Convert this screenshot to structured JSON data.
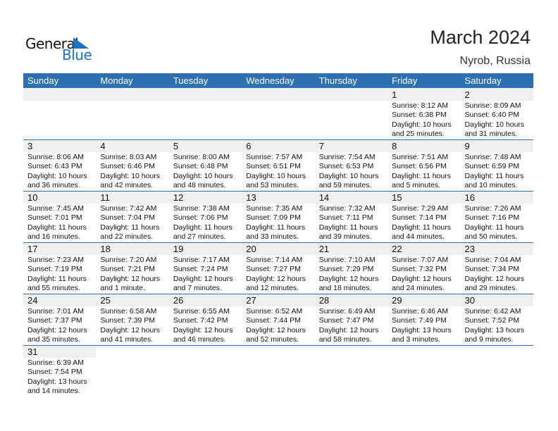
{
  "logo": {
    "line1": "General",
    "line2": "Blue"
  },
  "header": {
    "title": "March 2024",
    "location": "Nyrob, Russia"
  },
  "weekdays": [
    "Sunday",
    "Monday",
    "Tuesday",
    "Wednesday",
    "Thursday",
    "Friday",
    "Saturday"
  ],
  "colors": {
    "accent": "#2e6fb0",
    "band": "#f0f0f0"
  },
  "weeks": [
    [
      null,
      null,
      null,
      null,
      null,
      {
        "day": "1",
        "sunrise": "Sunrise: 8:12 AM",
        "sunset": "Sunset: 6:38 PM",
        "daylight1": "Daylight: 10 hours",
        "daylight2": "and 25 minutes."
      },
      {
        "day": "2",
        "sunrise": "Sunrise: 8:09 AM",
        "sunset": "Sunset: 6:40 PM",
        "daylight1": "Daylight: 10 hours",
        "daylight2": "and 31 minutes."
      }
    ],
    [
      {
        "day": "3",
        "sunrise": "Sunrise: 8:06 AM",
        "sunset": "Sunset: 6:43 PM",
        "daylight1": "Daylight: 10 hours",
        "daylight2": "and 36 minutes."
      },
      {
        "day": "4",
        "sunrise": "Sunrise: 8:03 AM",
        "sunset": "Sunset: 6:46 PM",
        "daylight1": "Daylight: 10 hours",
        "daylight2": "and 42 minutes."
      },
      {
        "day": "5",
        "sunrise": "Sunrise: 8:00 AM",
        "sunset": "Sunset: 6:48 PM",
        "daylight1": "Daylight: 10 hours",
        "daylight2": "and 48 minutes."
      },
      {
        "day": "6",
        "sunrise": "Sunrise: 7:57 AM",
        "sunset": "Sunset: 6:51 PM",
        "daylight1": "Daylight: 10 hours",
        "daylight2": "and 53 minutes."
      },
      {
        "day": "7",
        "sunrise": "Sunrise: 7:54 AM",
        "sunset": "Sunset: 6:53 PM",
        "daylight1": "Daylight: 10 hours",
        "daylight2": "and 59 minutes."
      },
      {
        "day": "8",
        "sunrise": "Sunrise: 7:51 AM",
        "sunset": "Sunset: 6:56 PM",
        "daylight1": "Daylight: 11 hours",
        "daylight2": "and 5 minutes."
      },
      {
        "day": "9",
        "sunrise": "Sunrise: 7:48 AM",
        "sunset": "Sunset: 6:59 PM",
        "daylight1": "Daylight: 11 hours",
        "daylight2": "and 10 minutes."
      }
    ],
    [
      {
        "day": "10",
        "sunrise": "Sunrise: 7:45 AM",
        "sunset": "Sunset: 7:01 PM",
        "daylight1": "Daylight: 11 hours",
        "daylight2": "and 16 minutes."
      },
      {
        "day": "11",
        "sunrise": "Sunrise: 7:42 AM",
        "sunset": "Sunset: 7:04 PM",
        "daylight1": "Daylight: 11 hours",
        "daylight2": "and 22 minutes."
      },
      {
        "day": "12",
        "sunrise": "Sunrise: 7:38 AM",
        "sunset": "Sunset: 7:06 PM",
        "daylight1": "Daylight: 11 hours",
        "daylight2": "and 27 minutes."
      },
      {
        "day": "13",
        "sunrise": "Sunrise: 7:35 AM",
        "sunset": "Sunset: 7:09 PM",
        "daylight1": "Daylight: 11 hours",
        "daylight2": "and 33 minutes."
      },
      {
        "day": "14",
        "sunrise": "Sunrise: 7:32 AM",
        "sunset": "Sunset: 7:11 PM",
        "daylight1": "Daylight: 11 hours",
        "daylight2": "and 39 minutes."
      },
      {
        "day": "15",
        "sunrise": "Sunrise: 7:29 AM",
        "sunset": "Sunset: 7:14 PM",
        "daylight1": "Daylight: 11 hours",
        "daylight2": "and 44 minutes."
      },
      {
        "day": "16",
        "sunrise": "Sunrise: 7:26 AM",
        "sunset": "Sunset: 7:16 PM",
        "daylight1": "Daylight: 11 hours",
        "daylight2": "and 50 minutes."
      }
    ],
    [
      {
        "day": "17",
        "sunrise": "Sunrise: 7:23 AM",
        "sunset": "Sunset: 7:19 PM",
        "daylight1": "Daylight: 11 hours",
        "daylight2": "and 55 minutes."
      },
      {
        "day": "18",
        "sunrise": "Sunrise: 7:20 AM",
        "sunset": "Sunset: 7:21 PM",
        "daylight1": "Daylight: 12 hours",
        "daylight2": "and 1 minute."
      },
      {
        "day": "19",
        "sunrise": "Sunrise: 7:17 AM",
        "sunset": "Sunset: 7:24 PM",
        "daylight1": "Daylight: 12 hours",
        "daylight2": "and 7 minutes."
      },
      {
        "day": "20",
        "sunrise": "Sunrise: 7:14 AM",
        "sunset": "Sunset: 7:27 PM",
        "daylight1": "Daylight: 12 hours",
        "daylight2": "and 12 minutes."
      },
      {
        "day": "21",
        "sunrise": "Sunrise: 7:10 AM",
        "sunset": "Sunset: 7:29 PM",
        "daylight1": "Daylight: 12 hours",
        "daylight2": "and 18 minutes."
      },
      {
        "day": "22",
        "sunrise": "Sunrise: 7:07 AM",
        "sunset": "Sunset: 7:32 PM",
        "daylight1": "Daylight: 12 hours",
        "daylight2": "and 24 minutes."
      },
      {
        "day": "23",
        "sunrise": "Sunrise: 7:04 AM",
        "sunset": "Sunset: 7:34 PM",
        "daylight1": "Daylight: 12 hours",
        "daylight2": "and 29 minutes."
      }
    ],
    [
      {
        "day": "24",
        "sunrise": "Sunrise: 7:01 AM",
        "sunset": "Sunset: 7:37 PM",
        "daylight1": "Daylight: 12 hours",
        "daylight2": "and 35 minutes."
      },
      {
        "day": "25",
        "sunrise": "Sunrise: 6:58 AM",
        "sunset": "Sunset: 7:39 PM",
        "daylight1": "Daylight: 12 hours",
        "daylight2": "and 41 minutes."
      },
      {
        "day": "26",
        "sunrise": "Sunrise: 6:55 AM",
        "sunset": "Sunset: 7:42 PM",
        "daylight1": "Daylight: 12 hours",
        "daylight2": "and 46 minutes."
      },
      {
        "day": "27",
        "sunrise": "Sunrise: 6:52 AM",
        "sunset": "Sunset: 7:44 PM",
        "daylight1": "Daylight: 12 hours",
        "daylight2": "and 52 minutes."
      },
      {
        "day": "28",
        "sunrise": "Sunrise: 6:49 AM",
        "sunset": "Sunset: 7:47 PM",
        "daylight1": "Daylight: 12 hours",
        "daylight2": "and 58 minutes."
      },
      {
        "day": "29",
        "sunrise": "Sunrise: 6:46 AM",
        "sunset": "Sunset: 7:49 PM",
        "daylight1": "Daylight: 13 hours",
        "daylight2": "and 3 minutes."
      },
      {
        "day": "30",
        "sunrise": "Sunrise: 6:42 AM",
        "sunset": "Sunset: 7:52 PM",
        "daylight1": "Daylight: 13 hours",
        "daylight2": "and 9 minutes."
      }
    ],
    [
      {
        "day": "31",
        "sunrise": "Sunrise: 6:39 AM",
        "sunset": "Sunset: 7:54 PM",
        "daylight1": "Daylight: 13 hours",
        "daylight2": "and 14 minutes."
      }
    ]
  ]
}
